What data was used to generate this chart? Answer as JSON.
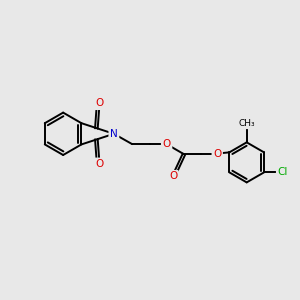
{
  "bg_color": "#e8e8e8",
  "bond_color": "#000000",
  "bond_width": 1.4,
  "atom_colors": {
    "N": "#0000cc",
    "O": "#dd0000",
    "Cl": "#00aa00",
    "C": "#000000"
  },
  "font_size": 7.5,
  "fig_size": [
    3.0,
    3.0
  ],
  "dpi": 100
}
